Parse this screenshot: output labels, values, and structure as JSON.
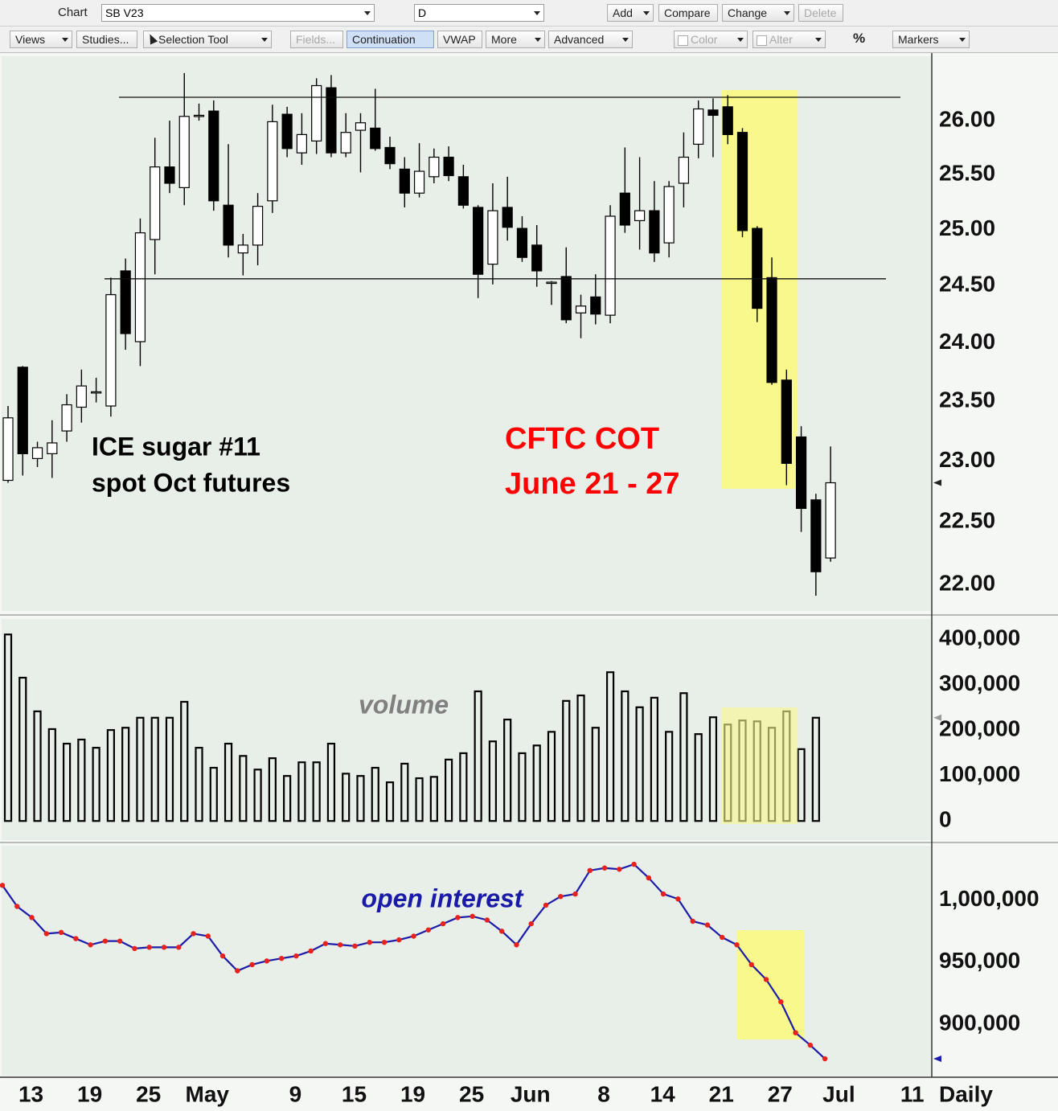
{
  "toolbar": {
    "app": "Chart",
    "symbol": "SB V23",
    "interval": "D",
    "row1_buttons": [
      "Add",
      "Compare",
      "Change",
      "Delete"
    ],
    "row2_buttons": [
      "Views",
      "Studies...",
      "Selection Tool",
      "Fields...",
      "Continuation",
      "VWAP",
      "More",
      "Advanced",
      "Color",
      "Alter",
      "%",
      "Markers"
    ]
  },
  "chart_data": [
    {
      "type": "candlestick",
      "log_scale": true,
      "grid": false,
      "up_color": "#ffffff",
      "down_color": "#000000",
      "annotations": [
        {
          "text": "ICE sugar #11",
          "color": "#000000"
        },
        {
          "text": "spot Oct futures",
          "color": "#000000"
        },
        {
          "text": "CFTC COT",
          "color": "#ff0000"
        },
        {
          "text": "June 21 - 27",
          "color": "#ff0000"
        }
      ],
      "reference_lines": [
        26.22,
        24.56
      ],
      "highlight": {
        "from": 49,
        "to": 53,
        "color": "#f8f88c"
      },
      "ylim": [
        21.79,
        26.61
      ],
      "yticks": [
        {
          "value": 22,
          "label": "22.00"
        },
        {
          "value": 22.5,
          "label": "22.50"
        },
        {
          "value": 23,
          "label": "23.00"
        },
        {
          "value": 23.5,
          "label": "23.50"
        },
        {
          "value": 24,
          "label": "24.00"
        },
        {
          "value": 24.5,
          "label": "24.50"
        },
        {
          "value": 25,
          "label": "25.00"
        },
        {
          "value": 25.5,
          "label": "25.50"
        },
        {
          "value": 26,
          "label": "26.00"
        }
      ],
      "open": [
        22.84,
        23.79,
        23.02,
        23.06,
        23.25,
        23.45,
        23.58,
        23.46,
        24.63,
        24.01,
        24.91,
        25.57,
        25.38,
        26.05,
        26.09,
        25.22,
        24.79,
        24.86,
        25.26,
        26.06,
        25.7,
        25.81,
        26.31,
        25.7,
        25.91,
        25.93,
        25.75,
        25.55,
        25.33,
        25.48,
        25.66,
        25.48,
        25.2,
        24.69,
        25.2,
        25.01,
        24.86,
        24.53,
        24.58,
        24.26,
        24.4,
        24.24,
        25.33,
        25.08,
        25.17,
        24.88,
        25.42,
        25.78,
        26.1,
        26.13,
        25.89,
        25.01,
        24.57,
        23.68,
        23.2,
        22.68,
        22.21,
        null,
        null,
        null,
        null,
        null,
        null
      ],
      "high": [
        23.46,
        23.8,
        23.16,
        23.34,
        23.56,
        23.77,
        23.7,
        24.57,
        24.74,
        25.1,
        25.84,
        26.0,
        26.45,
        26.16,
        26.19,
        25.78,
        24.96,
        25.33,
        26.15,
        26.13,
        26.07,
        26.4,
        26.43,
        26.07,
        26.07,
        26.3,
        25.85,
        25.66,
        25.79,
        25.74,
        25.76,
        25.59,
        25.22,
        25.42,
        25.48,
        25.12,
        25.04,
        24.54,
        24.84,
        24.42,
        24.6,
        25.22,
        25.75,
        25.66,
        25.44,
        25.44,
        25.89,
        26.19,
        26.21,
        26.24,
        25.93,
        25.03,
        24.75,
        23.77,
        23.29,
        22.73,
        23.12,
        null,
        null,
        null,
        null,
        null,
        null
      ],
      "low": [
        22.82,
        22.88,
        22.95,
        22.86,
        23.16,
        23.32,
        23.49,
        23.37,
        23.94,
        23.8,
        24.6,
        25.33,
        25.22,
        26.0,
        25.17,
        24.75,
        24.59,
        24.68,
        25.15,
        25.66,
        25.59,
        25.69,
        25.66,
        25.66,
        25.52,
        25.72,
        25.55,
        25.2,
        25.29,
        25.42,
        25.44,
        25.19,
        24.39,
        24.51,
        24.9,
        24.71,
        24.49,
        24.33,
        24.17,
        24.04,
        24.16,
        24.17,
        24.97,
        24.82,
        24.71,
        24.75,
        25.2,
        25.65,
        25.66,
        25.78,
        24.93,
        24.18,
        23.64,
        22.8,
        22.42,
        21.91,
        22.18,
        null,
        null,
        null,
        null,
        null,
        null
      ],
      "close": [
        23.36,
        23.06,
        23.11,
        23.15,
        23.47,
        23.63,
        23.58,
        24.42,
        24.08,
        24.97,
        25.57,
        25.42,
        26.04,
        26.05,
        25.26,
        24.86,
        24.86,
        25.21,
        25.99,
        25.74,
        25.87,
        26.33,
        25.7,
        25.89,
        25.98,
        25.74,
        25.6,
        25.33,
        25.53,
        25.66,
        25.49,
        25.22,
        24.6,
        25.17,
        25.02,
        24.75,
        24.63,
        24.53,
        24.2,
        24.32,
        24.25,
        25.12,
        25.04,
        25.17,
        24.79,
        25.39,
        25.66,
        26.11,
        26.05,
        25.87,
        24.99,
        24.3,
        23.66,
        22.98,
        22.61,
        22.1,
        22.82,
        null,
        null,
        null,
        null,
        null,
        null
      ]
    },
    {
      "type": "bar",
      "color": "#000000",
      "grid": false,
      "annotations": [
        {
          "text": "volume",
          "color": "#808080"
        }
      ],
      "highlight": {
        "from": 49,
        "to": 53,
        "color": "#f8f88c"
      },
      "ylim": [
        -42000,
        444000
      ],
      "yticks": [
        0,
        {
          "value": 100000,
          "label": "100,000"
        },
        {
          "value": 200000,
          "label": "200,000"
        },
        {
          "value": 300000,
          "label": "300,000"
        },
        {
          "value": 400000,
          "label": "400,000"
        }
      ],
      "values": [
        410000,
        315000,
        241000,
        202000,
        170000,
        179000,
        161000,
        200000,
        205000,
        227000,
        227000,
        227000,
        262000,
        161000,
        117000,
        170000,
        143000,
        113000,
        138000,
        99000,
        129000,
        129000,
        170000,
        104000,
        99000,
        117000,
        85000,
        126000,
        94000,
        97000,
        135000,
        149000,
        285000,
        175000,
        223000,
        149000,
        166000,
        196000,
        264000,
        276000,
        205000,
        327000,
        285000,
        250000,
        271000,
        196000,
        281000,
        191000,
        228000,
        212000,
        221000,
        219000,
        205000,
        241000,
        158000,
        227000,
        null,
        null,
        null,
        null,
        null,
        null,
        null
      ]
    },
    {
      "type": "line",
      "color": "#1c1ca8",
      "marker_color": "#e8211d",
      "grid": false,
      "annotations": [
        {
          "text": "open interest",
          "color": "#1a1aa8"
        }
      ],
      "highlight": {
        "from": 50,
        "to": 54,
        "color": "#f8f88c"
      },
      "ylim": [
        858400,
        1044000
      ],
      "yticks": [
        {
          "value": 900000,
          "label": "900,000"
        },
        {
          "value": 950000,
          "label": "950,000"
        },
        {
          "value": 1000000,
          "label": "1,000,000"
        }
      ],
      "xlabel": "Daily",
      "categories": [
        null,
        null,
        "13",
        null,
        null,
        null,
        "19",
        null,
        null,
        null,
        "25",
        null,
        null,
        null,
        "May",
        null,
        null,
        null,
        null,
        null,
        "9",
        null,
        null,
        null,
        "15",
        null,
        null,
        null,
        "19",
        null,
        null,
        null,
        "25",
        null,
        null,
        null,
        "Jun",
        null,
        null,
        null,
        null,
        "8",
        null,
        null,
        null,
        "14",
        null,
        null,
        null,
        "21",
        null,
        null,
        null,
        "27",
        null,
        null,
        null,
        "Jul",
        null,
        null,
        null,
        null,
        "11"
      ],
      "values": [
        1012000,
        995000,
        986000,
        973000,
        974000,
        969000,
        964000,
        967000,
        967000,
        961000,
        962000,
        962000,
        962000,
        973000,
        971000,
        955000,
        943000,
        948000,
        951000,
        953000,
        955000,
        959000,
        965000,
        964000,
        963000,
        966000,
        966000,
        968000,
        971000,
        976000,
        981000,
        986000,
        987000,
        984000,
        975000,
        964000,
        981000,
        996000,
        1003000,
        1005000,
        1024000,
        1026000,
        1025000,
        1029000,
        1018000,
        1005000,
        1001000,
        983000,
        980000,
        970000,
        964000,
        948000,
        936000,
        918000,
        893000,
        883000,
        872000,
        null,
        null,
        null,
        null,
        null,
        null
      ]
    }
  ]
}
